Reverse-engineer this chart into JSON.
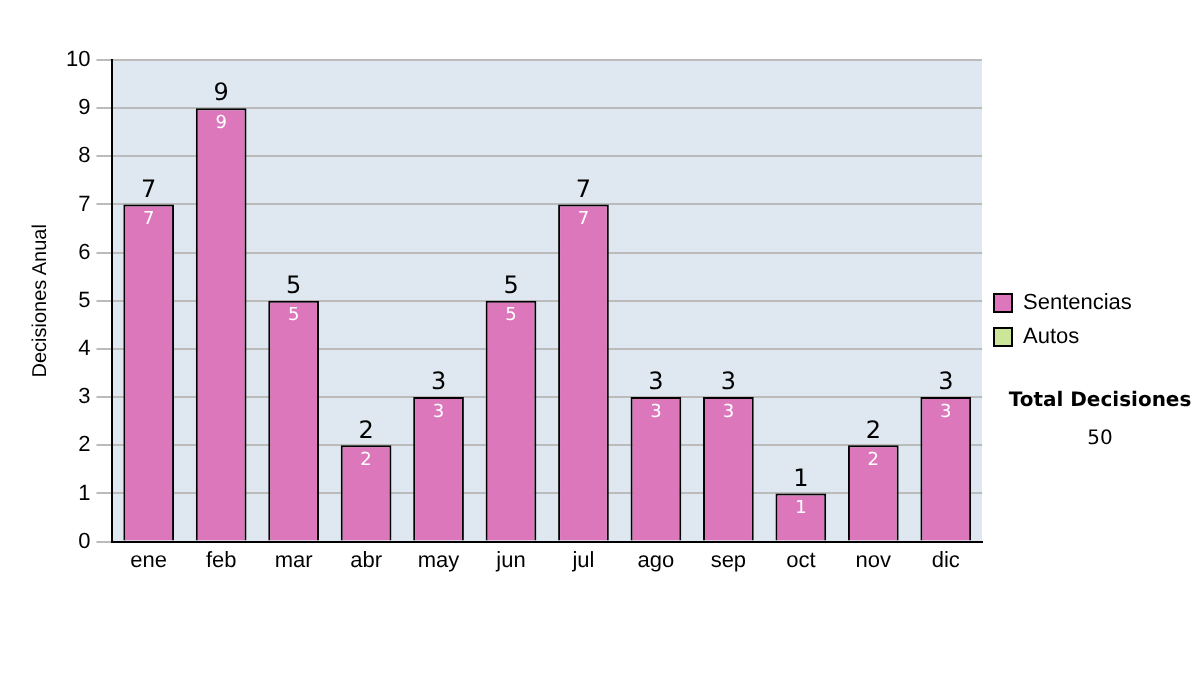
{
  "chart_data": {
    "type": "bar",
    "stacked": true,
    "ylabel": "Decisiones Anual",
    "categories": [
      "ene",
      "feb",
      "mar",
      "abr",
      "may",
      "jun",
      "jul",
      "ago",
      "sep",
      "oct",
      "nov",
      "dic"
    ],
    "series": [
      {
        "name": "Sentencias",
        "color": "#dd77bb",
        "values": [
          7,
          9,
          5,
          2,
          3,
          5,
          7,
          3,
          3,
          1,
          2,
          3
        ],
        "value_labels": [
          "7",
          "9",
          "5",
          "2",
          "3",
          "5",
          "7",
          "3",
          "3",
          "1",
          "2",
          "3"
        ]
      },
      {
        "name": "Autos",
        "color": "#cce699",
        "values": [
          0,
          0,
          0,
          0,
          0,
          0,
          0,
          0,
          0,
          0,
          0,
          0
        ]
      }
    ],
    "totals": [
      "7",
      "9",
      "5",
      "2",
      "3",
      "5",
      "7",
      "3",
      "3",
      "1",
      "2",
      "3"
    ],
    "ylim": [
      0,
      10
    ],
    "yticks": [
      0,
      1,
      2,
      3,
      4,
      5,
      6,
      7,
      8,
      9,
      10
    ],
    "grid": "y",
    "legend": "right",
    "annotations": [
      "Total Decisiones",
      "50"
    ]
  }
}
